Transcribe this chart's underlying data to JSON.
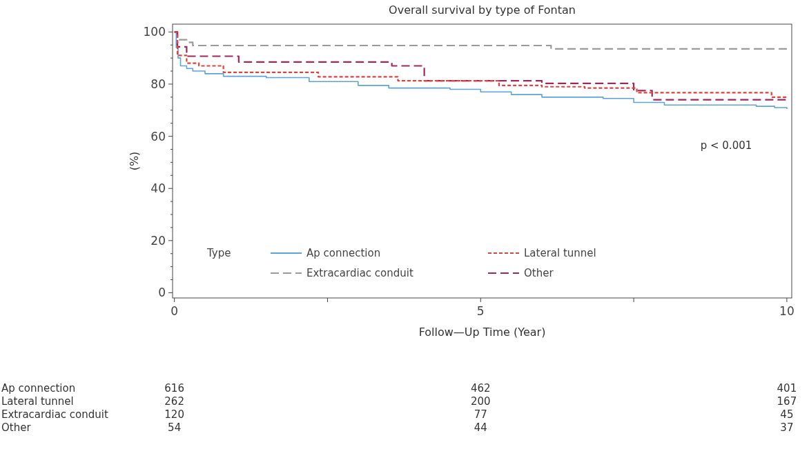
{
  "chart_data": {
    "type": "step",
    "title": "Overall survival by type of Fontan",
    "xlabel": "Follow—Up Time (Year)",
    "ylabel": "(%)",
    "legend_title": "Type",
    "legend": "bottom left",
    "xlim": [
      -0.03,
      10.08
    ],
    "ylim": [
      -2,
      103
    ],
    "xticks": [
      0,
      {
        "value": 2.5,
        "label": null
      },
      5,
      {
        "value": 7.5,
        "label": null
      },
      10
    ],
    "yticks": [
      0,
      {
        "value": 5,
        "label": null
      },
      {
        "value": 10,
        "label": null
      },
      {
        "value": 15,
        "label": null
      },
      20,
      {
        "value": 25,
        "label": null
      },
      {
        "value": 30,
        "label": null
      },
      {
        "value": 35,
        "label": null
      },
      40,
      {
        "value": 45,
        "label": null
      },
      {
        "value": 50,
        "label": null
      },
      {
        "value": 55,
        "label": null
      },
      60,
      {
        "value": 65,
        "label": null
      },
      {
        "value": 70,
        "label": null
      },
      {
        "value": 75,
        "label": null
      },
      80,
      {
        "value": 85,
        "label": null
      },
      {
        "value": 90,
        "label": null
      },
      {
        "value": 95,
        "label": null
      },
      100
    ],
    "series": [
      {
        "name": "Ap connection",
        "color": "#5ba3d9",
        "line_style": "solid",
        "x": [
          0,
          0.03,
          0.06,
          0.1,
          0.2,
          0.3,
          0.5,
          0.8,
          1.5,
          2.2,
          3,
          3.5,
          4.5,
          5,
          5.5,
          6,
          7,
          7.5,
          8,
          9.5,
          9.8,
          10
        ],
        "values": [
          100,
          94,
          90,
          87,
          86,
          85,
          84,
          83,
          82.5,
          81,
          79.5,
          78.5,
          78,
          77,
          76,
          75,
          74.5,
          73,
          72,
          71.5,
          71,
          70.5
        ]
      },
      {
        "name": "Extracardiac conduit",
        "color": "#9a9a9a",
        "line_style": "dashed",
        "x": [
          0,
          0.05,
          0.2,
          0.3,
          6.15,
          10
        ],
        "values": [
          100,
          97,
          96,
          94.8,
          93.5,
          93.5
        ]
      },
      {
        "name": "Lateral tunnel",
        "color": "#e5403a",
        "line_style": "dotted",
        "x": [
          0,
          0.05,
          0.2,
          0.4,
          0.8,
          2.35,
          3.65,
          5.3,
          6,
          6.7,
          7.55,
          9.75,
          10
        ],
        "values": [
          100,
          91,
          88,
          87,
          84.5,
          82.8,
          81.3,
          79.5,
          79,
          78.5,
          76.7,
          75,
          74.5
        ]
      },
      {
        "name": "Other",
        "color": "#a3265a",
        "line_style": "dashed",
        "x": [
          0,
          0.05,
          0.2,
          1.05,
          3.55,
          4.08,
          6,
          7.5,
          7.8,
          10
        ],
        "values": [
          100,
          94.3,
          90.7,
          88.5,
          87,
          81.3,
          80.3,
          77.5,
          74,
          74
        ]
      }
    ],
    "annotations": [
      "p < 0.001",
      "Ap connection",
      "616",
      "462",
      "401",
      "Lateral tunnel",
      "262",
      "200",
      "167",
      "Extracardiac conduit",
      "120",
      "77",
      "45",
      "Other",
      "54",
      "44",
      "37"
    ]
  }
}
